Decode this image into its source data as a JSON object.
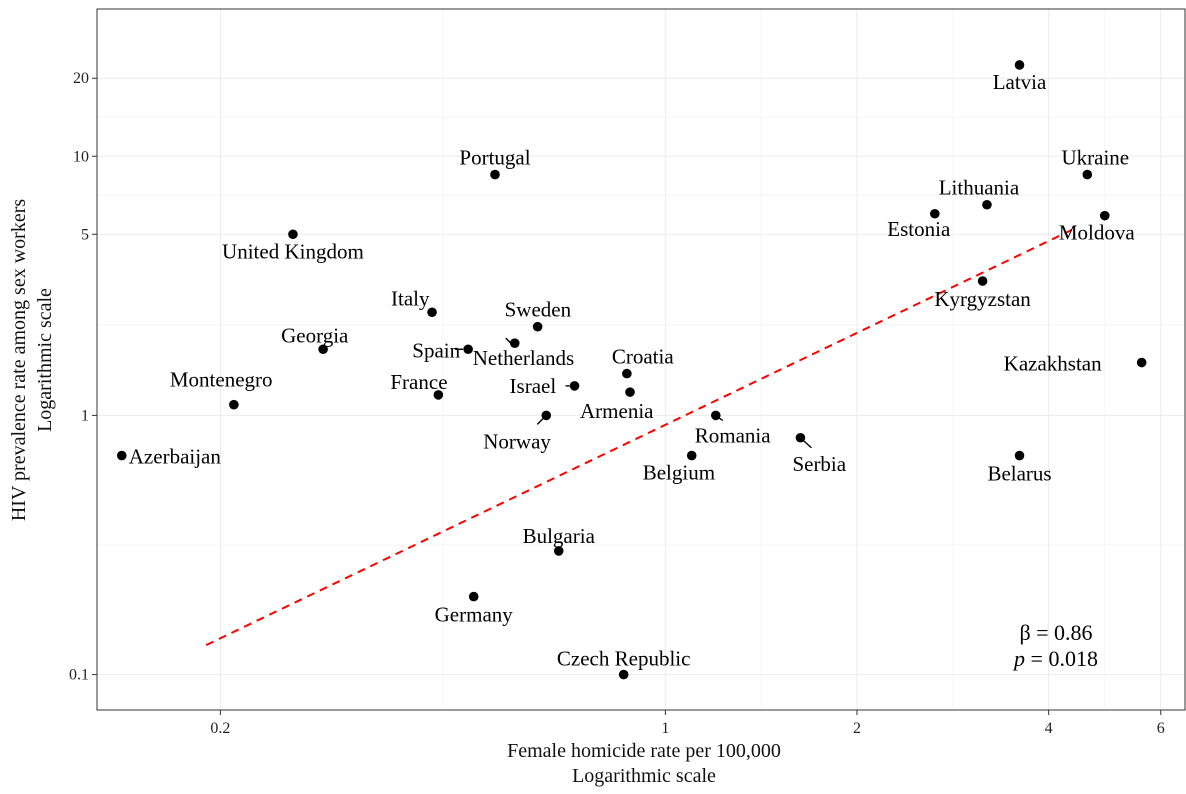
{
  "chart_data": {
    "type": "scatter",
    "xlabel": [
      "Female homicide rate per 100,000",
      "Logarithmic scale"
    ],
    "ylabel": [
      "HIV prevalence rate among sex workers",
      "Logarithmic scale"
    ],
    "x_scale": "log",
    "y_scale": "log",
    "xlim": [
      0.128,
      6.55
    ],
    "ylim": [
      0.073,
      37
    ],
    "x_ticks": [
      0.2,
      1,
      2,
      4,
      6
    ],
    "x_tick_labels": [
      "0.2",
      "1",
      "2",
      "4",
      "6"
    ],
    "y_ticks": [
      0.1,
      1,
      5,
      10,
      20
    ],
    "y_tick_labels": [
      "0.1",
      "1",
      "5",
      "10",
      "20"
    ],
    "grid": true,
    "points": [
      {
        "name": "Latvia",
        "x": 3.6,
        "y": 22.5
      },
      {
        "name": "Ukraine",
        "x": 4.6,
        "y": 8.5
      },
      {
        "name": "Lithuania",
        "x": 3.2,
        "y": 6.5
      },
      {
        "name": "Estonia",
        "x": 2.65,
        "y": 6.0
      },
      {
        "name": "Moldova",
        "x": 4.9,
        "y": 5.9
      },
      {
        "name": "Kyrgyzstan",
        "x": 3.15,
        "y": 3.3
      },
      {
        "name": "Kazakhstan",
        "x": 5.6,
        "y": 1.6
      },
      {
        "name": "Belarus",
        "x": 3.6,
        "y": 0.7
      },
      {
        "name": "Serbia",
        "x": 1.63,
        "y": 0.82
      },
      {
        "name": "Romania",
        "x": 1.2,
        "y": 1.0
      },
      {
        "name": "Belgium",
        "x": 1.1,
        "y": 0.7
      },
      {
        "name": "Armenia",
        "x": 0.88,
        "y": 1.23
      },
      {
        "name": "Croatia",
        "x": 0.87,
        "y": 1.45
      },
      {
        "name": "Israel",
        "x": 0.72,
        "y": 1.3
      },
      {
        "name": "Norway",
        "x": 0.65,
        "y": 1.0
      },
      {
        "name": "Sweden",
        "x": 0.63,
        "y": 2.2
      },
      {
        "name": "Netherlands",
        "x": 0.58,
        "y": 1.9
      },
      {
        "name": "Portugal",
        "x": 0.54,
        "y": 8.5
      },
      {
        "name": "Spain",
        "x": 0.49,
        "y": 1.8
      },
      {
        "name": "Italy",
        "x": 0.43,
        "y": 2.5
      },
      {
        "name": "France",
        "x": 0.44,
        "y": 1.2
      },
      {
        "name": "Georgia",
        "x": 0.29,
        "y": 1.8
      },
      {
        "name": "United Kingdom",
        "x": 0.26,
        "y": 5.0
      },
      {
        "name": "Montenegro",
        "x": 0.21,
        "y": 1.1
      },
      {
        "name": "Azerbaijan",
        "x": 0.14,
        "y": 0.7
      },
      {
        "name": "Bulgaria",
        "x": 0.68,
        "y": 0.3
      },
      {
        "name": "Germany",
        "x": 0.5,
        "y": 0.2
      },
      {
        "name": "Czech Republic",
        "x": 0.86,
        "y": 0.1
      }
    ],
    "fit_line": {
      "x": [
        0.19,
        4.35
      ],
      "y": [
        0.13,
        5.2
      ],
      "color": "#ff0000",
      "style": "dashed"
    },
    "annotations": [
      {
        "text": "β = 0.86",
        "italic_part": ""
      },
      {
        "text": " = 0.018",
        "italic_part": "p"
      }
    ]
  }
}
